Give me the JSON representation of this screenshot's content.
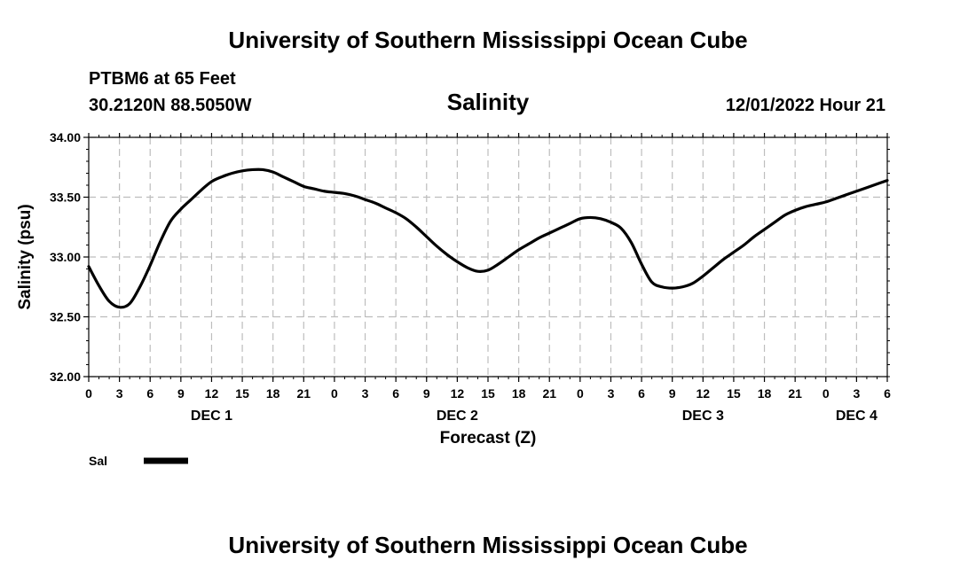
{
  "header": {
    "title": "University of Southern Mississippi Ocean Cube",
    "station": "PTBM6 at 65 Feet",
    "location": "30.2120N  88.5050W",
    "valid": "12/01/2022 Hour 21",
    "footer_title": "University of Southern Mississippi Ocean Cube"
  },
  "chart_data": {
    "type": "line",
    "title": "Salinity",
    "xlabel": "Forecast (Z)",
    "ylabel": "Salinity (psu)",
    "ylim": [
      32.0,
      34.0
    ],
    "yticks": [
      "32.00",
      "32.50",
      "33.00",
      "33.50",
      "34.00"
    ],
    "xlim_hours": [
      0,
      78
    ],
    "x_tick_labels": [
      "0",
      "3",
      "6",
      "9",
      "12",
      "15",
      "18",
      "21",
      "0",
      "3",
      "6",
      "9",
      "12",
      "15",
      "18",
      "21",
      "0",
      "3",
      "6",
      "9",
      "12",
      "15",
      "18",
      "21",
      "0",
      "3",
      "6"
    ],
    "day_labels": [
      {
        "label": "DEC 1",
        "hour": 12
      },
      {
        "label": "DEC 2",
        "hour": 36
      },
      {
        "label": "DEC 3",
        "hour": 60
      },
      {
        "label": "DEC 4",
        "hour": 75
      }
    ],
    "grid": true,
    "legend": {
      "position": "bottom-left",
      "label": "Sal",
      "color": "#000000"
    },
    "series": [
      {
        "name": "Sal",
        "x": [
          0,
          1,
          2,
          3,
          4,
          5,
          6,
          7,
          8,
          9,
          10,
          11,
          12,
          13,
          14,
          15,
          16,
          17,
          18,
          19,
          20,
          21,
          22,
          23,
          24,
          25,
          26,
          27,
          28,
          29,
          30,
          31,
          32,
          33,
          34,
          35,
          36,
          37,
          38,
          39,
          40,
          41,
          42,
          43,
          44,
          45,
          46,
          47,
          48,
          49,
          50,
          51,
          52,
          53,
          54,
          55,
          56,
          57,
          58,
          59,
          60,
          61,
          62,
          63,
          64,
          65,
          66,
          67,
          68,
          69,
          70,
          71,
          72,
          73,
          74,
          75,
          76,
          77,
          78
        ],
        "values": [
          32.92,
          32.76,
          32.63,
          32.58,
          32.61,
          32.75,
          32.93,
          33.13,
          33.3,
          33.4,
          33.48,
          33.56,
          33.63,
          33.67,
          33.7,
          33.72,
          33.73,
          33.73,
          33.71,
          33.67,
          33.63,
          33.59,
          33.57,
          33.55,
          33.54,
          33.53,
          33.51,
          33.48,
          33.45,
          33.41,
          33.37,
          33.32,
          33.25,
          33.17,
          33.09,
          33.02,
          32.96,
          32.91,
          32.88,
          32.89,
          32.94,
          33.0,
          33.06,
          33.11,
          33.16,
          33.2,
          33.24,
          33.28,
          33.32,
          33.33,
          33.32,
          33.29,
          33.24,
          33.12,
          32.94,
          32.79,
          32.75,
          32.74,
          32.75,
          32.78,
          32.84,
          32.91,
          32.98,
          33.04,
          33.1,
          33.17,
          33.23,
          33.29,
          33.35,
          33.39,
          33.42,
          33.44,
          33.46,
          33.49,
          33.52,
          33.55,
          33.58,
          33.61,
          33.64
        ]
      }
    ]
  }
}
